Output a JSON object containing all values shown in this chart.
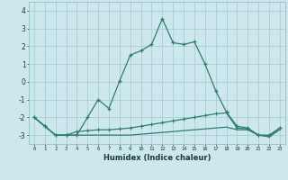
{
  "xlabel": "Humidex (Indice chaleur)",
  "x_values": [
    0,
    1,
    2,
    3,
    4,
    5,
    6,
    7,
    8,
    9,
    10,
    11,
    12,
    13,
    14,
    15,
    16,
    17,
    18,
    19,
    20,
    21,
    22,
    23
  ],
  "line1_y": [
    -2.0,
    -2.5,
    -3.0,
    -3.0,
    -3.0,
    -2.0,
    -1.0,
    -1.5,
    0.05,
    1.5,
    1.75,
    2.1,
    3.55,
    2.2,
    2.1,
    2.25,
    1.0,
    -0.5,
    -1.7,
    -2.5,
    -2.6,
    -3.0,
    -3.0,
    -2.6
  ],
  "line2_y": [
    -2.0,
    -2.5,
    -3.0,
    -3.0,
    -2.8,
    -2.75,
    -2.7,
    -2.7,
    -2.65,
    -2.6,
    -2.5,
    -2.4,
    -2.3,
    -2.2,
    -2.1,
    -2.0,
    -1.9,
    -1.8,
    -1.75,
    -2.6,
    -2.65,
    -3.0,
    -3.05,
    -2.6
  ],
  "line3_y": [
    -2.0,
    -2.5,
    -3.0,
    -3.0,
    -3.0,
    -3.0,
    -3.0,
    -3.0,
    -3.0,
    -3.0,
    -2.95,
    -2.9,
    -2.85,
    -2.8,
    -2.75,
    -2.7,
    -2.65,
    -2.6,
    -2.55,
    -2.7,
    -2.7,
    -3.0,
    -3.1,
    -2.7
  ],
  "line_color": "#2e7d6e",
  "bg_color": "#cde8ec",
  "grid_color": "#aacdd4",
  "ylim": [
    -3.5,
    4.5
  ],
  "yticks": [
    -3,
    -2,
    -1,
    0,
    1,
    2,
    3,
    4
  ]
}
